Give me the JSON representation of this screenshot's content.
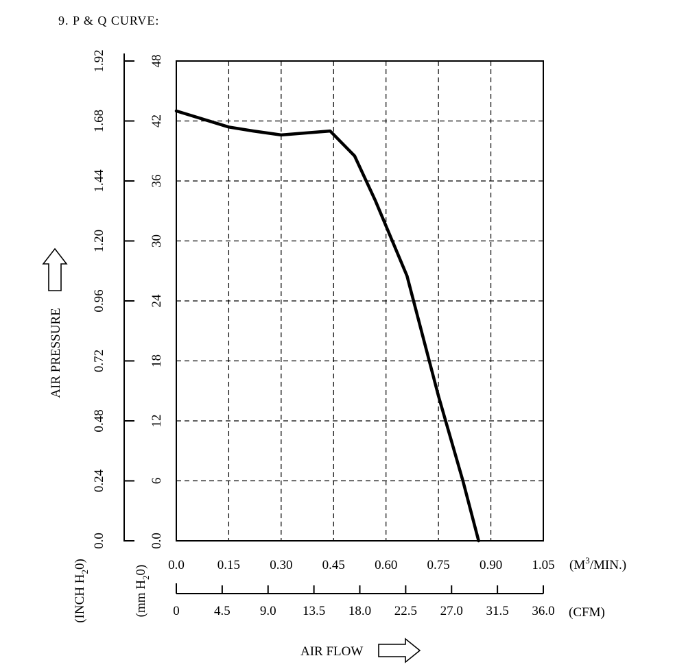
{
  "header": {
    "title": "9. P & Q CURVE:"
  },
  "chart_data": {
    "type": "line",
    "title": "9. P & Q CURVE:",
    "ylabel": "AIR PRESSURE",
    "xlabel": "AIR FLOW",
    "y_axes": {
      "primary": {
        "unit": "mm H2O",
        "ticks": [
          "0.0",
          "6",
          "12",
          "18",
          "24",
          "30",
          "36",
          "42",
          "48"
        ],
        "range": [
          0,
          48
        ]
      },
      "secondary": {
        "unit": "INCH H2O",
        "ticks": [
          "0.0",
          "0.24",
          "0.48",
          "0.72",
          "0.96",
          "1.20",
          "1.44",
          "1.68",
          "1.92"
        ],
        "range": [
          0,
          1.92
        ]
      }
    },
    "x_axes": {
      "primary": {
        "unit": "M3/MIN.",
        "ticks": [
          "0.0",
          "0.15",
          "0.30",
          "0.45",
          "0.60",
          "0.75",
          "0.90",
          "1.05"
        ],
        "range": [
          0,
          1.05
        ]
      },
      "secondary": {
        "unit": "CFM",
        "ticks": [
          "0",
          "4.5",
          "9.0",
          "13.5",
          "18.0",
          "22.5",
          "27.0",
          "31.5",
          "36.0"
        ],
        "range": [
          0,
          36.0
        ]
      }
    },
    "grid": true,
    "series": [
      {
        "x": [
          0.0,
          0.15,
          0.22,
          0.3,
          0.44,
          0.51,
          0.57,
          0.66,
          0.75,
          0.82,
          0.865
        ],
        "y": [
          43.0,
          41.4,
          41.0,
          40.6,
          41.0,
          38.5,
          34.0,
          26.5,
          14.5,
          6.0,
          0.0
        ]
      }
    ]
  },
  "labels": {
    "y_label": "AIR PRESSURE",
    "x_label": "AIR FLOW",
    "inch_unit": {
      "pre": "(INCH H",
      "sub": "2",
      "post": "0)"
    },
    "mm_unit": {
      "pre": "(mm H",
      "sub": "2",
      "post": "0)"
    },
    "m3_unit": {
      "pre": "(M",
      "sup": "3",
      "post": "/MIN.)"
    },
    "cfm_unit": "(CFM)"
  }
}
